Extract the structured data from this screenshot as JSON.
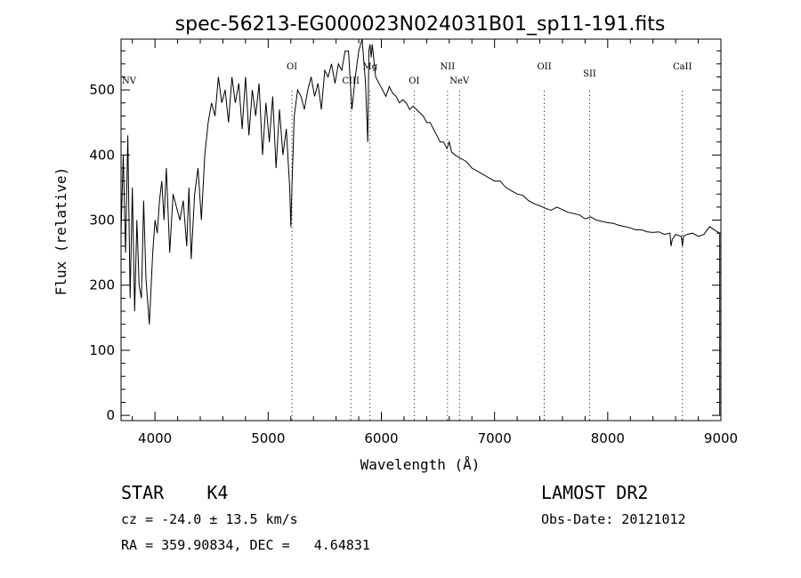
{
  "chart_data": {
    "type": "line",
    "title": "spec-56213-EG000023N024031B01_sp11-191.fits",
    "xlabel": "Wavelength (Å)",
    "ylabel": "Flux (relative)",
    "xlim": [
      3700,
      9000
    ],
    "ylim": [
      -8,
      578
    ],
    "x_ticks": [
      4000,
      5000,
      6000,
      7000,
      8000,
      9000
    ],
    "y_ticks": [
      0,
      100,
      200,
      300,
      400,
      500
    ],
    "grid": false,
    "series": [
      {
        "x": [
          3700,
          3720,
          3740,
          3760,
          3780,
          3800,
          3820,
          3840,
          3860,
          3880,
          3900,
          3920,
          3950,
          3980,
          4000,
          4020,
          4040,
          4060,
          4080,
          4100,
          4130,
          4160,
          4190,
          4220,
          4250,
          4280,
          4300,
          4320,
          4350,
          4380,
          4410,
          4440,
          4470,
          4500,
          4530,
          4560,
          4590,
          4620,
          4650,
          4680,
          4710,
          4740,
          4770,
          4800,
          4830,
          4860,
          4890,
          4920,
          4950,
          4980,
          5010,
          5040,
          5070,
          5100,
          5130,
          5160,
          5190,
          5200,
          5210,
          5230,
          5260,
          5290,
          5320,
          5350,
          5380,
          5410,
          5440,
          5470,
          5500,
          5530,
          5560,
          5590,
          5620,
          5650,
          5680,
          5710,
          5740,
          5770,
          5800,
          5830,
          5860,
          5880,
          5890,
          5900,
          5910,
          5920,
          5950,
          5980,
          6010,
          6040,
          6070,
          6100,
          6130,
          6160,
          6190,
          6220,
          6250,
          6280,
          6310,
          6340,
          6370,
          6400,
          6430,
          6460,
          6490,
          6520,
          6550,
          6580,
          6600,
          6620,
          6650,
          6700,
          6750,
          6800,
          6850,
          6900,
          6950,
          7000,
          7050,
          7100,
          7150,
          7200,
          7250,
          7300,
          7350,
          7400,
          7450,
          7500,
          7550,
          7600,
          7650,
          7700,
          7750,
          7800,
          7850,
          7900,
          7950,
          8000,
          8050,
          8100,
          8150,
          8200,
          8250,
          8300,
          8350,
          8400,
          8450,
          8500,
          8550,
          8560,
          8570,
          8600,
          8650,
          8660,
          8670,
          8700,
          8750,
          8800,
          8850,
          8900,
          8950,
          8990
        ],
        "y": [
          280,
          400,
          250,
          430,
          180,
          350,
          160,
          300,
          200,
          180,
          330,
          210,
          140,
          250,
          300,
          280,
          330,
          360,
          300,
          380,
          250,
          340,
          320,
          300,
          330,
          260,
          350,
          240,
          340,
          380,
          300,
          400,
          450,
          480,
          460,
          520,
          480,
          500,
          450,
          520,
          480,
          510,
          440,
          520,
          430,
          500,
          460,
          510,
          400,
          480,
          420,
          490,
          380,
          470,
          400,
          440,
          350,
          290,
          350,
          460,
          500,
          490,
          470,
          500,
          520,
          490,
          510,
          470,
          530,
          520,
          540,
          510,
          540,
          530,
          560,
          560,
          470,
          520,
          560,
          578,
          510,
          420,
          560,
          570,
          550,
          570,
          520,
          510,
          500,
          490,
          505,
          495,
          490,
          480,
          485,
          480,
          470,
          475,
          470,
          465,
          460,
          450,
          450,
          440,
          430,
          420,
          420,
          410,
          420,
          405,
          400,
          395,
          390,
          380,
          375,
          370,
          365,
          360,
          360,
          350,
          345,
          340,
          338,
          330,
          325,
          322,
          318,
          315,
          320,
          316,
          312,
          310,
          308,
          302,
          305,
          300,
          298,
          296,
          295,
          292,
          290,
          288,
          285,
          285,
          282,
          281,
          282,
          278,
          280,
          260,
          270,
          278,
          275,
          260,
          275,
          278,
          280,
          275,
          278,
          290,
          284,
          280
        ]
      }
    ],
    "emission_lines": [
      {
        "label": "NV",
        "x": 3700
      },
      {
        "label": "OI",
        "x": 5210
      },
      {
        "label": "CIII",
        "x": 5730
      },
      {
        "label": "Mg",
        "x": 5900
      },
      {
        "label": "OI",
        "x": 6290
      },
      {
        "label": "NII",
        "x": 6585
      },
      {
        "label": "NeV",
        "x": 6690
      },
      {
        "label": "OII",
        "x": 7440
      },
      {
        "label": "SII",
        "x": 7840
      },
      {
        "label": "CaII",
        "x": 8660
      }
    ]
  },
  "info": {
    "class": "STAR    K4",
    "cz": "cz = -24.0 ± 13.5 km/s",
    "radec": "RA = 359.90834, DEC =   4.64831",
    "survey": "LAMOST DR2",
    "obs_date": "Obs-Date: 20121012"
  }
}
